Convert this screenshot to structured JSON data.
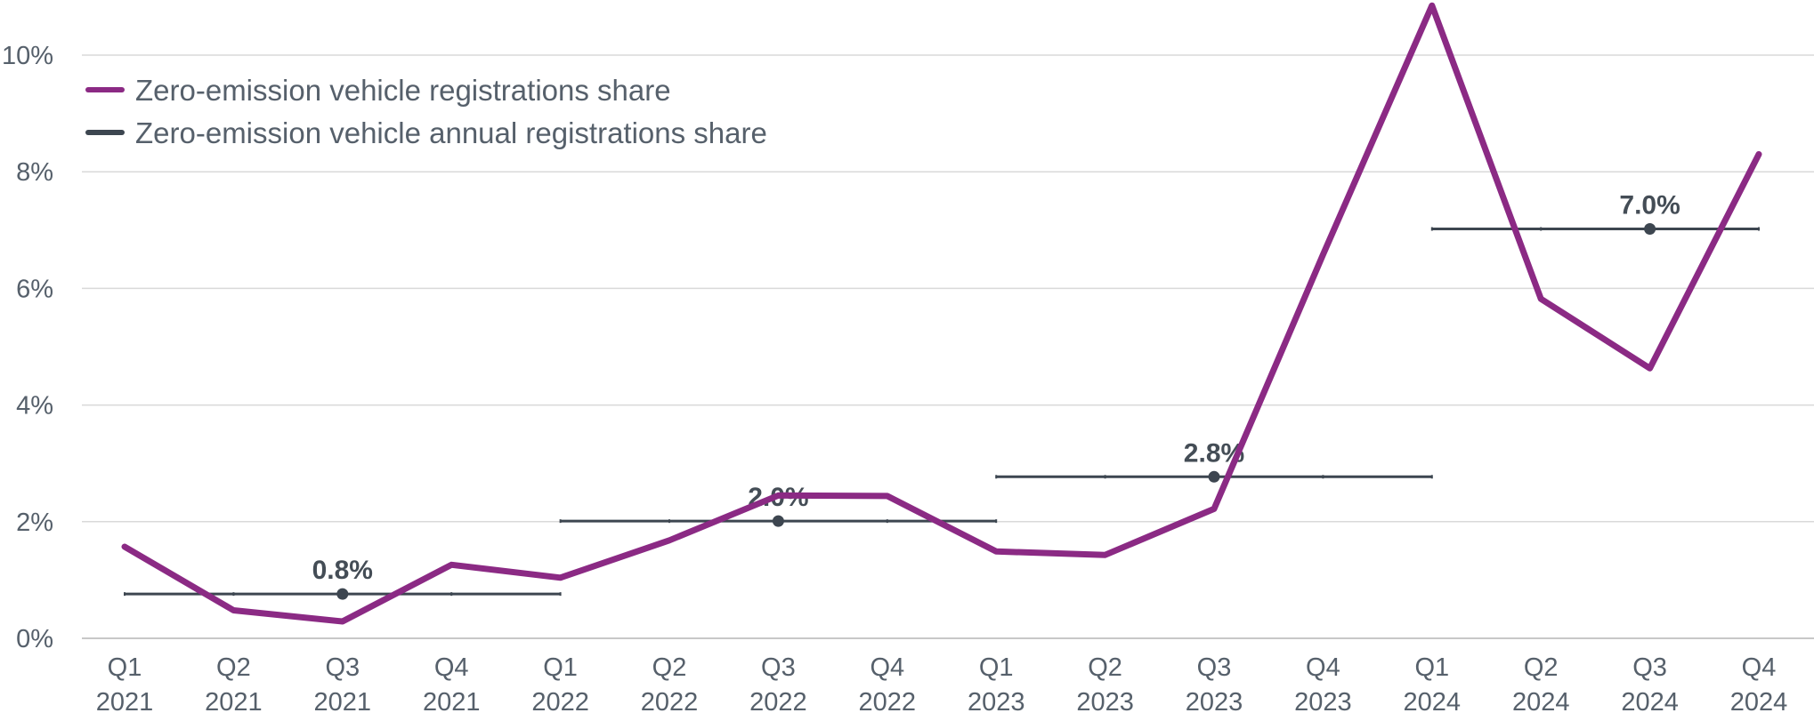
{
  "chart_data": {
    "type": "line",
    "categories": [
      [
        "Q1",
        "2021"
      ],
      [
        "Q2",
        "2021"
      ],
      [
        "Q3",
        "2021"
      ],
      [
        "Q4",
        "2021"
      ],
      [
        "Q1",
        "2022"
      ],
      [
        "Q2",
        "2022"
      ],
      [
        "Q3",
        "2022"
      ],
      [
        "Q4",
        "2022"
      ],
      [
        "Q1",
        "2023"
      ],
      [
        "Q2",
        "2023"
      ],
      [
        "Q3",
        "2023"
      ],
      [
        "Q4",
        "2023"
      ],
      [
        "Q1",
        "2024"
      ],
      [
        "Q2",
        "2024"
      ],
      [
        "Q3",
        "2024"
      ],
      [
        "Q4",
        "2024"
      ]
    ],
    "series": [
      {
        "name": "Zero-emission vehicle registrations share",
        "color": "#8b2a84",
        "values": [
          1.57,
          0.48,
          0.29,
          1.26,
          1.04,
          1.68,
          2.45,
          2.44,
          1.49,
          1.43,
          2.22,
          6.58,
          10.85,
          5.82,
          4.63,
          8.3
        ]
      },
      {
        "name": "Zero-emission vehicle annual registrations share",
        "color": "#3d4650",
        "annual": [
          {
            "from": 0,
            "to": 4,
            "value": 0.76,
            "label": "0.8%",
            "marker_at": 2
          },
          {
            "from": 4,
            "to": 8,
            "value": 2.01,
            "label": "2.0%",
            "marker_at": 6
          },
          {
            "from": 8,
            "to": 12,
            "value": 2.77,
            "label": "2.8%",
            "marker_at": 10
          },
          {
            "from": 12,
            "to": 15,
            "value": 7.02,
            "label": "7.0%",
            "marker_at": 14
          }
        ]
      }
    ],
    "y_ticks": [
      {
        "value": 0,
        "label": "0%"
      },
      {
        "value": 2,
        "label": "2%"
      },
      {
        "value": 4,
        "label": "4%"
      },
      {
        "value": 6,
        "label": "6%"
      },
      {
        "value": 8,
        "label": "8%"
      },
      {
        "value": 10,
        "label": "10%"
      }
    ],
    "ylim": [
      0,
      10.9
    ],
    "grid": true,
    "legend_position": "top-left",
    "title": "",
    "xlabel": "",
    "ylabel": ""
  }
}
